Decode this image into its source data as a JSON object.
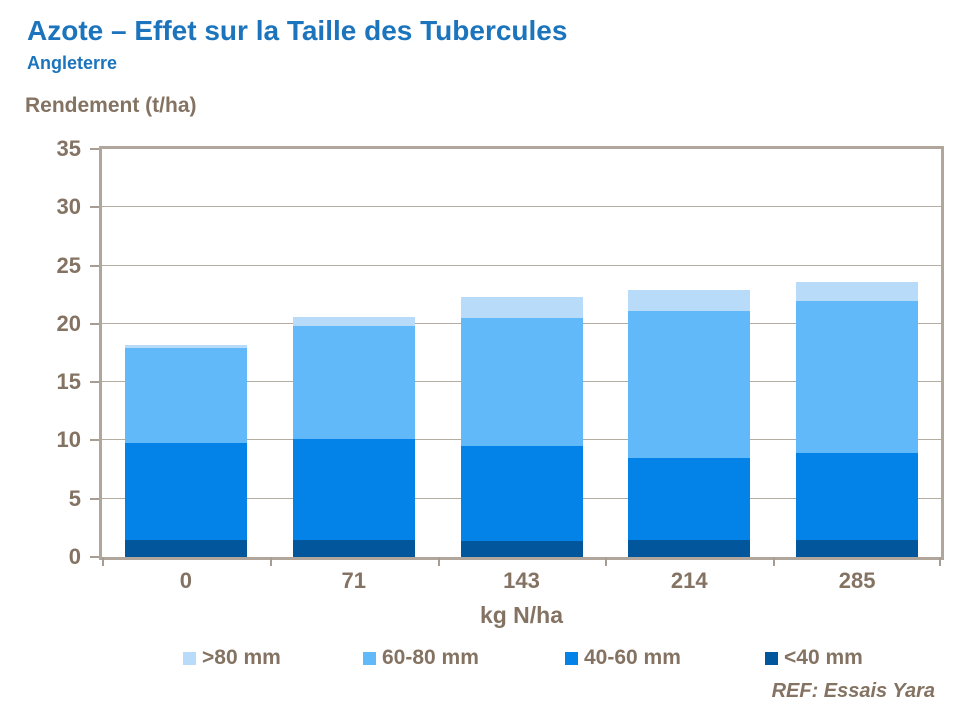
{
  "header": {
    "title": "Azote – Effet sur la Taille des Tubercules",
    "subtitle": "Angleterre"
  },
  "chart_data": {
    "type": "bar",
    "stacked": true,
    "ylabel": "Rendement (t/ha)",
    "xlabel": "kg N/ha",
    "categories": [
      "0",
      "71",
      "143",
      "214",
      "285"
    ],
    "series": [
      {
        "name": "<40 mm",
        "color": "#02569B",
        "values": [
          1.5,
          1.5,
          1.4,
          1.5,
          1.5
        ]
      },
      {
        "name": "40-60 mm",
        "color": "#0383E8",
        "values": [
          8.3,
          8.6,
          8.1,
          7.0,
          7.4
        ]
      },
      {
        "name": "60-80 mm",
        "color": "#62B9FA",
        "values": [
          8.1,
          9.7,
          11.0,
          12.6,
          13.1
        ]
      },
      {
        "name": ">80 mm",
        "color": "#B8DBFA",
        "values": [
          0.3,
          0.8,
          1.8,
          1.8,
          1.6
        ]
      }
    ],
    "legend_order": [
      ">80 mm",
      "60-80 mm",
      "40-60 mm",
      "<40 mm"
    ],
    "ylim": [
      0,
      35
    ],
    "ytick_step": 5,
    "grid": true,
    "legend_position": "bottom"
  },
  "footer": {
    "ref": "REF: Essais Yara"
  },
  "colors": {
    "title_blue": "#1B74BC",
    "axis_text_brown": "#847362",
    "plot_border": "#b0a69b",
    "gridline": "#b5aca1"
  }
}
